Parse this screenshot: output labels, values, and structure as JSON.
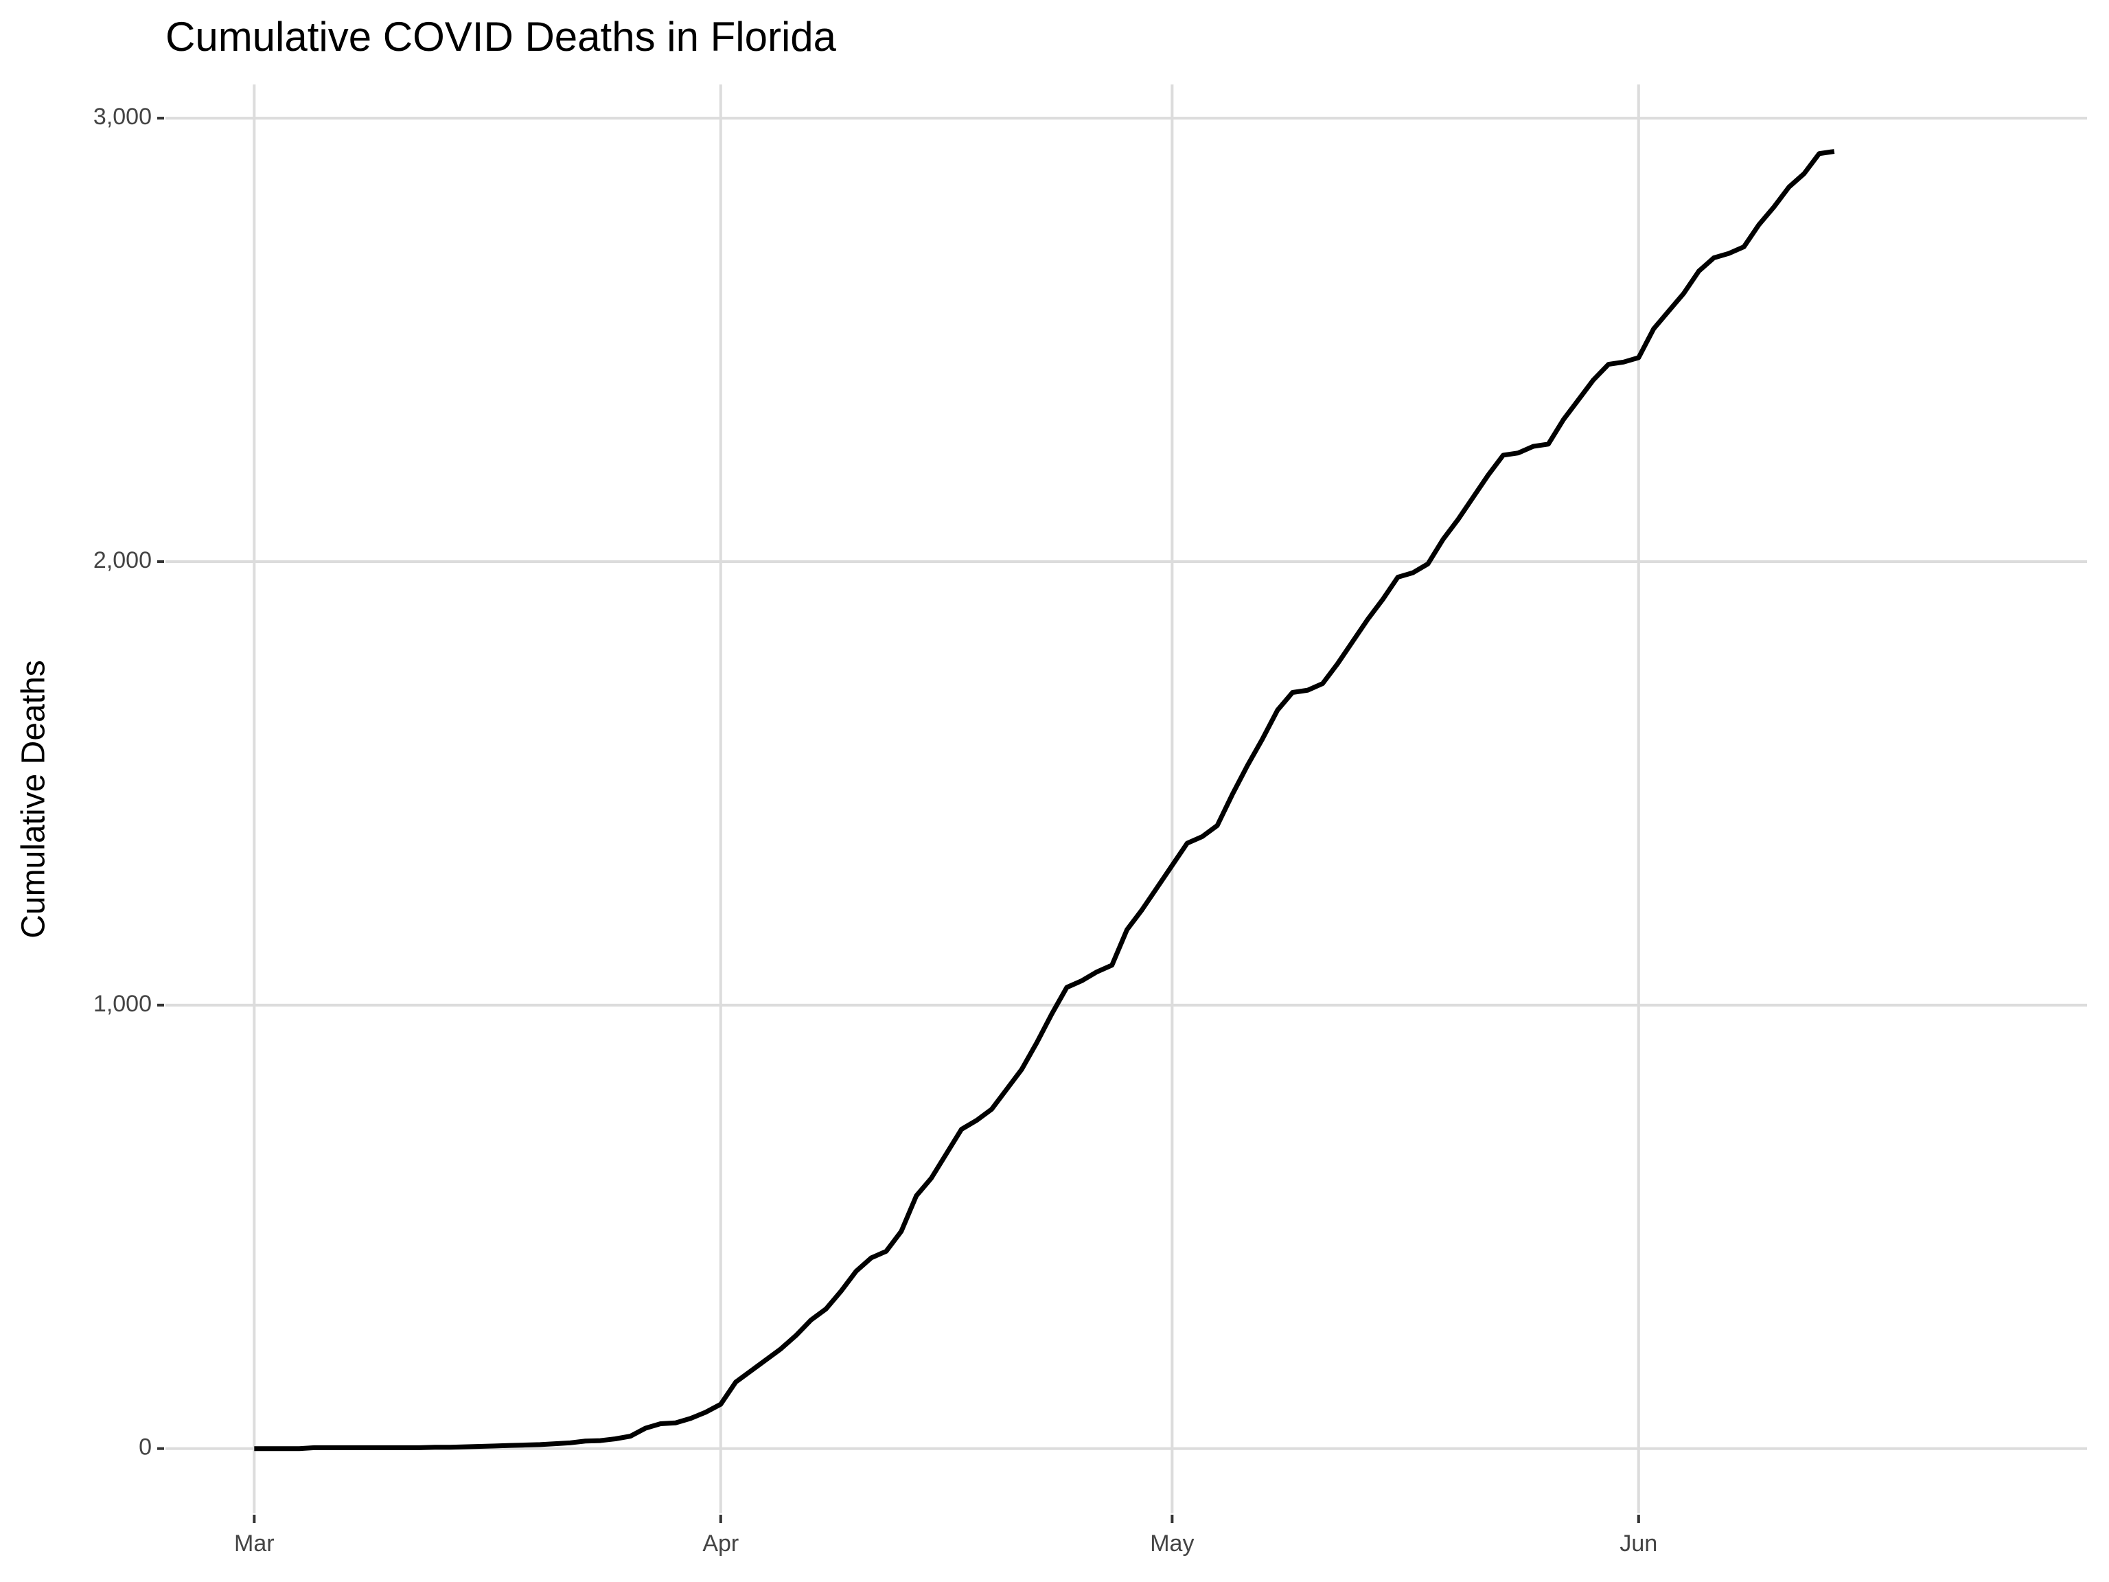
{
  "chart_data": {
    "type": "line",
    "title": "Cumulative COVID Deaths in Florida",
    "y_label": "Cumulative Deaths",
    "x": [
      0,
      1,
      2,
      3,
      4,
      5,
      6,
      7,
      8,
      9,
      10,
      11,
      12,
      13,
      14,
      15,
      16,
      17,
      18,
      19,
      20,
      21,
      22,
      23,
      24,
      25,
      26,
      27,
      28,
      29,
      30,
      31,
      32,
      33,
      34,
      35,
      36,
      37,
      38,
      39,
      40,
      41,
      42,
      43,
      44,
      45,
      46,
      47,
      48,
      49,
      50,
      51,
      52,
      53,
      54,
      55,
      56,
      57,
      58,
      59,
      60,
      61,
      62,
      63,
      64,
      65,
      66,
      67,
      68,
      69,
      70,
      71,
      72,
      73,
      74,
      75,
      76,
      77,
      78,
      79,
      80,
      81,
      82,
      83,
      84,
      85,
      86,
      87,
      88,
      89,
      90,
      91,
      92,
      93,
      94,
      95,
      96,
      97,
      98,
      99,
      100,
      101,
      102,
      103,
      104,
      105
    ],
    "series": [
      {
        "name": "Cumulative Deaths",
        "color": "#000000",
        "values": [
          0,
          0,
          0,
          0,
          2,
          2,
          2,
          2,
          2,
          2,
          2,
          2,
          3,
          3,
          4,
          5,
          6,
          7,
          8,
          9,
          11,
          13,
          17,
          18,
          22,
          28,
          46,
          56,
          58,
          68,
          82,
          100,
          150,
          175,
          200,
          225,
          255,
          290,
          315,
          355,
          400,
          430,
          445,
          490,
          570,
          610,
          665,
          720,
          740,
          765,
          810,
          855,
          915,
          980,
          1040,
          1055,
          1075,
          1090,
          1170,
          1215,
          1265,
          1315,
          1365,
          1380,
          1405,
          1475,
          1540,
          1600,
          1665,
          1705,
          1710,
          1725,
          1770,
          1820,
          1870,
          1915,
          1965,
          1975,
          1995,
          2050,
          2095,
          2145,
          2195,
          2240,
          2245,
          2260,
          2265,
          2320,
          2365,
          2410,
          2445,
          2450,
          2460,
          2525,
          2565,
          2605,
          2655,
          2685,
          2695,
          2710,
          2760,
          2800,
          2845,
          2875,
          2920,
          2925
        ]
      }
    ],
    "xlim": [
      -5.9,
      121.8
    ],
    "xticks": [
      {
        "value": 0,
        "label": "Mar"
      },
      {
        "value": 31,
        "label": "Apr"
      },
      {
        "value": 61,
        "label": "May"
      },
      {
        "value": 92,
        "label": "Jun"
      }
    ],
    "ylim": [
      -146,
      3076
    ],
    "yticks": [
      0,
      {
        "value": 1000,
        "label": "1,000"
      },
      {
        "value": 2000,
        "label": "2,000"
      },
      {
        "value": 3000,
        "label": "3,000"
      }
    ],
    "grid": true
  }
}
